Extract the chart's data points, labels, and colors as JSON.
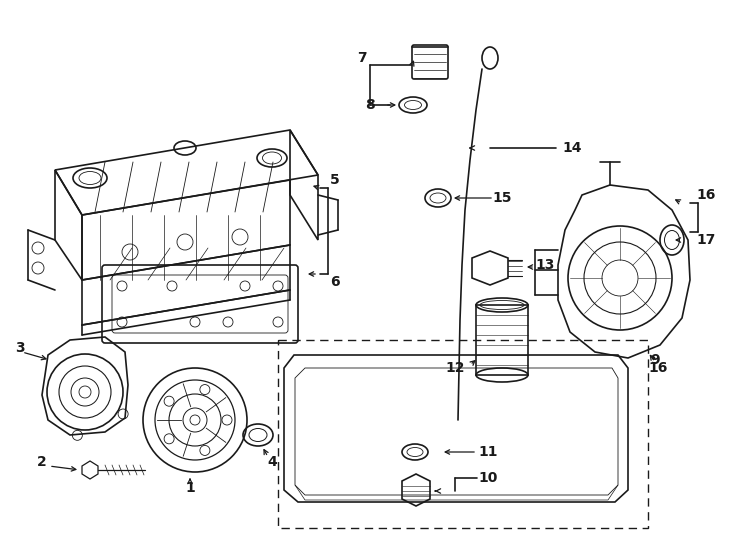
{
  "bg_color": "#ffffff",
  "line_color": "#1a1a1a",
  "fig_width": 7.34,
  "fig_height": 5.4,
  "dpi": 100,
  "border_color": "#333333",
  "lw_main": 1.2,
  "lw_thin": 0.7,
  "lw_label": 0.8,
  "fontsize": 9.5,
  "fontsize_bold": 10
}
